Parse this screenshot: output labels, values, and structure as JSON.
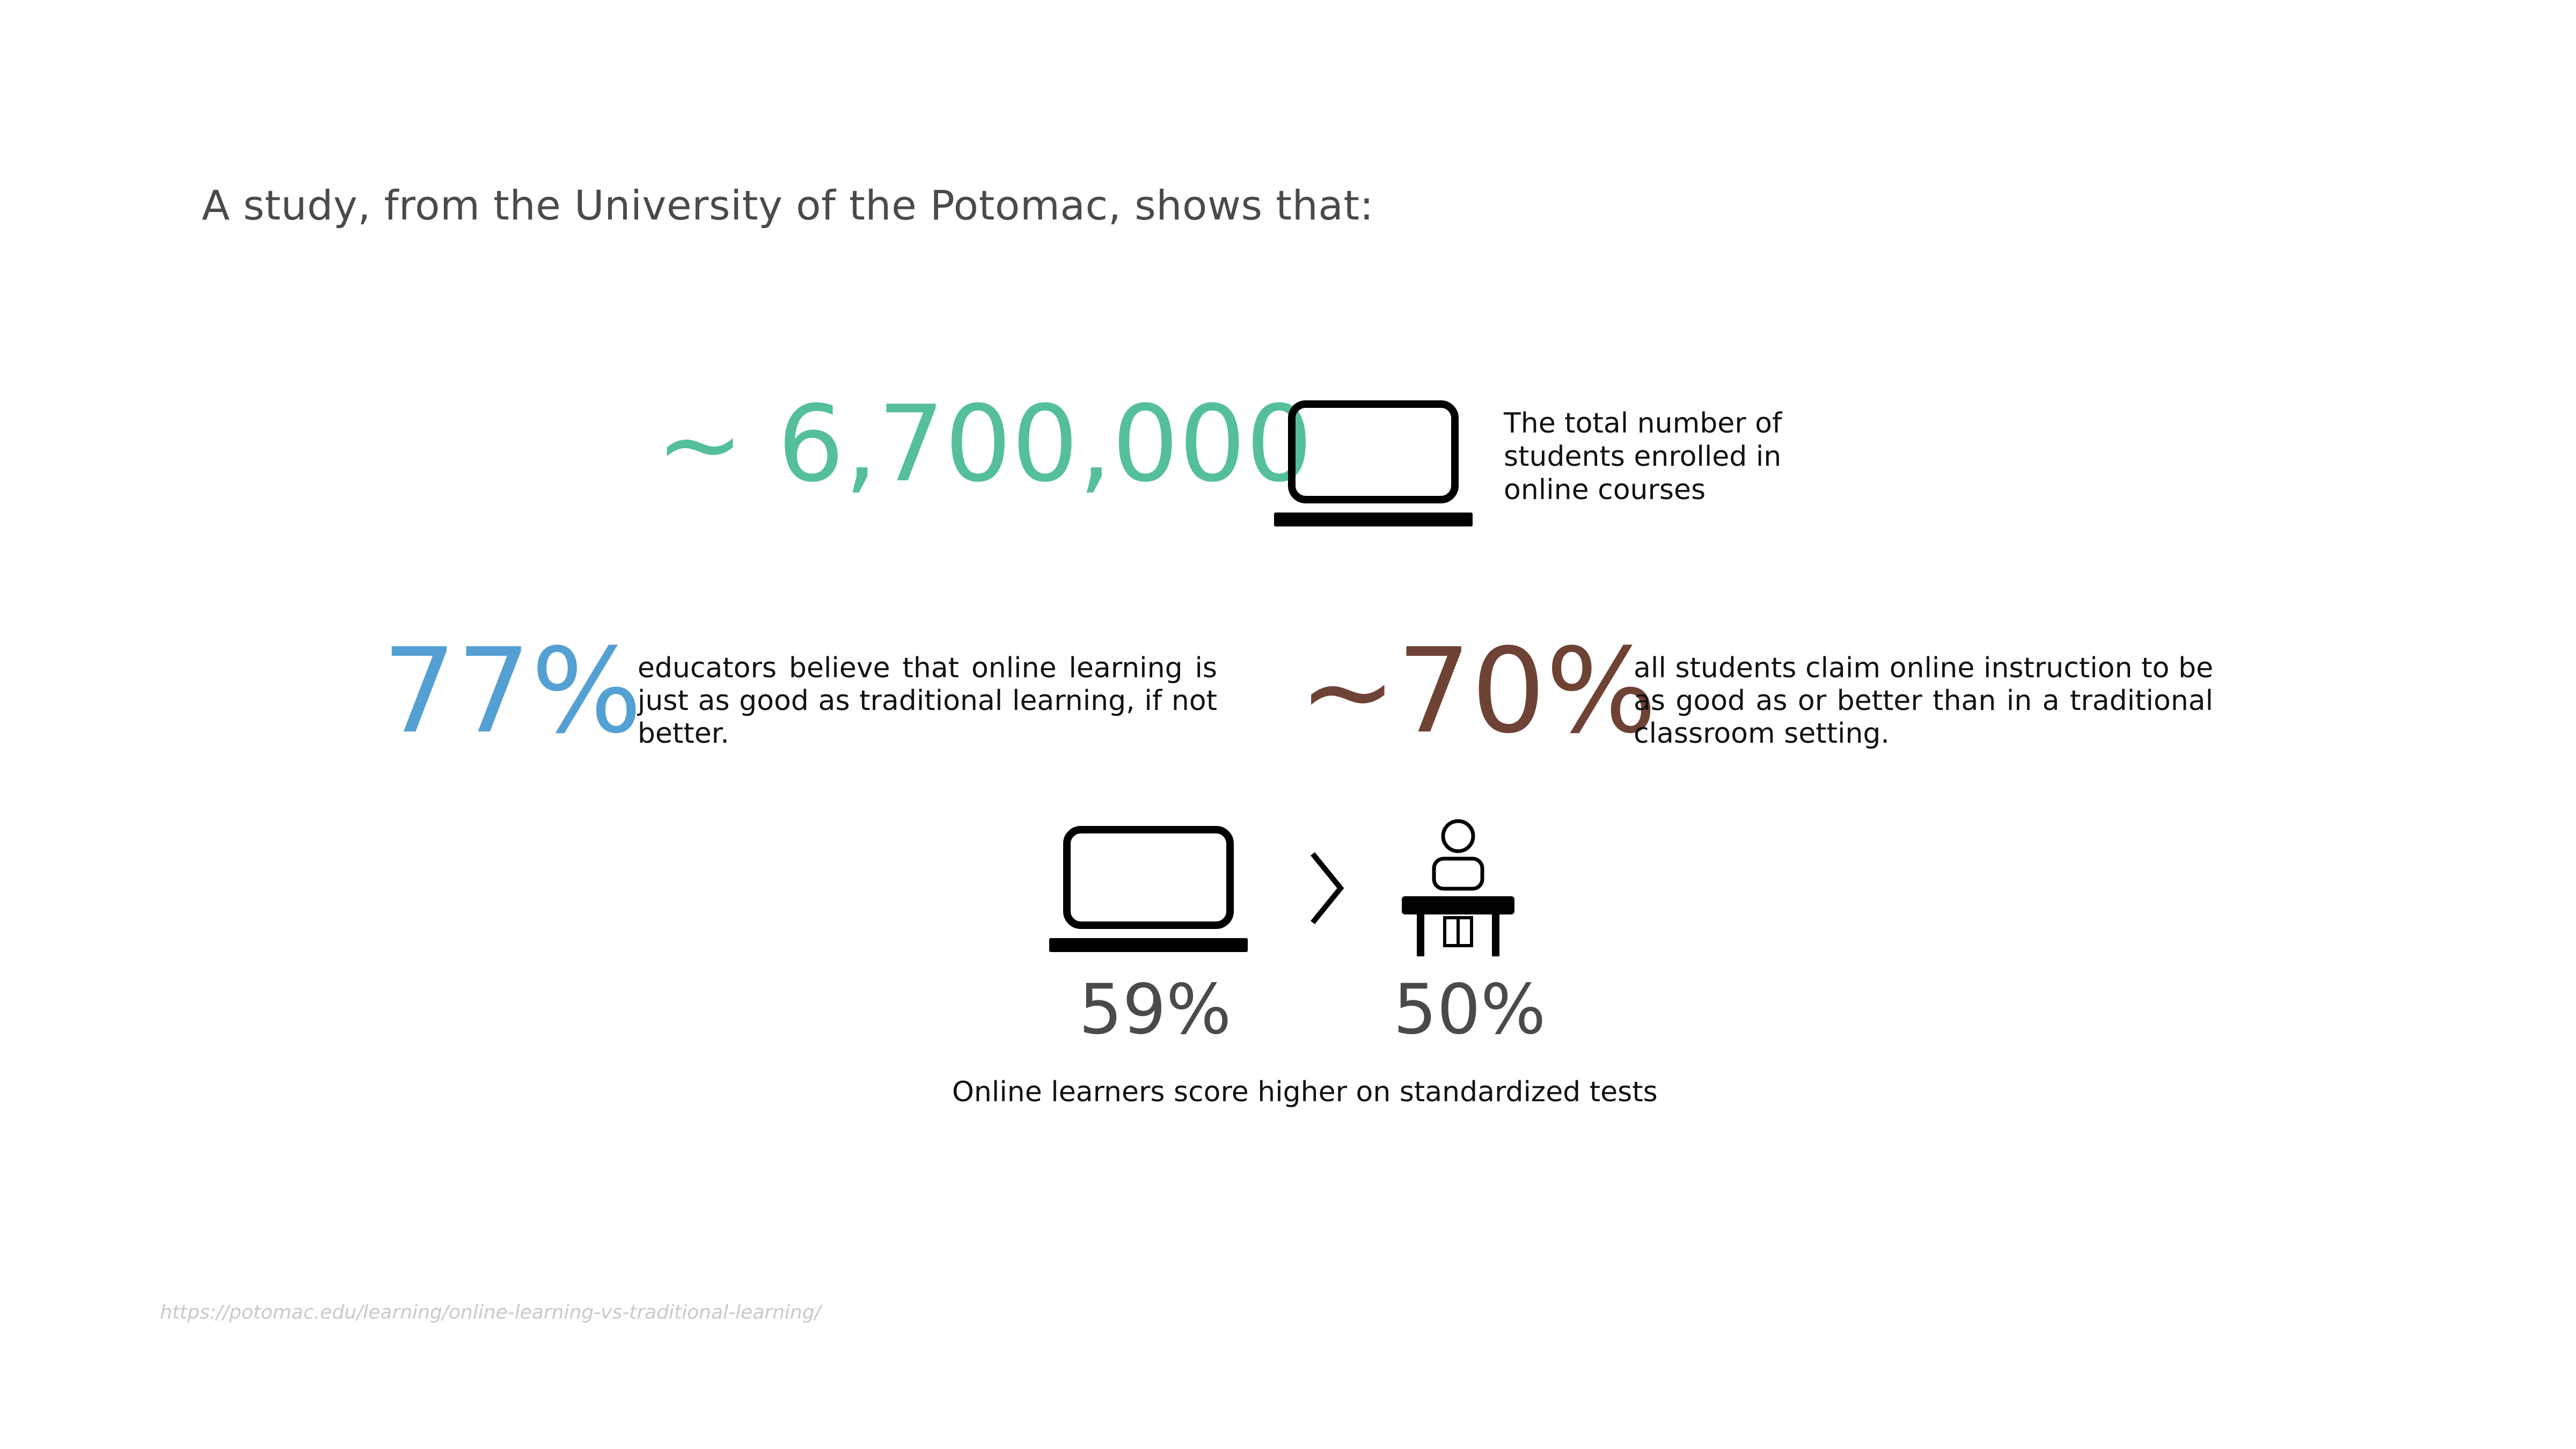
{
  "heading": "A study, from the University of the Potomac, shows that:",
  "enrollment": {
    "value": "~ 6,700,000",
    "icon": "laptop-icon",
    "description": "The total number of students enrolled in online courses"
  },
  "educators": {
    "value": "77%",
    "description": "educators believe that online learning is just as good as traditional learning, if not better.",
    "color": "#55a0d2"
  },
  "students": {
    "value": "~70%",
    "description": "all students claim online instruction to be as good as or better than in a traditional classroom setting.",
    "color": "#6e4234"
  },
  "comparison": {
    "online_icon": "laptop-icon",
    "comparator_icon": "greater-than-icon",
    "classroom_icon": "student-at-desk-icon",
    "online_value": "59%",
    "classroom_value": "50%",
    "caption": "Online learners score higher on standardized tests"
  },
  "source_url": "https://potomac.edu/learning/online-learning-vs-traditional-learning/",
  "colors": {
    "enrollment": "#55bf9d",
    "heading": "#4a4a4a"
  }
}
